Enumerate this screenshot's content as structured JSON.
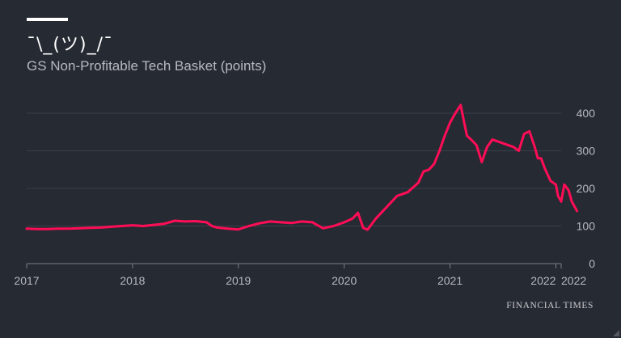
{
  "header": {
    "title": "¯\\_(ツ)_/¯",
    "subtitle": "GS Non-Profitable Tech Basket (points)"
  },
  "footer": {
    "source": "FINANCIAL TIMES"
  },
  "colors": {
    "background": "#262a33",
    "line": "#ff0d56",
    "grid": "#3b3f48",
    "axis_text": "#b7b9be"
  },
  "chart_data": {
    "type": "line",
    "title": "GS Non-Profitable Tech Basket (points)",
    "xlabel": "",
    "ylabel": "",
    "xlim": [
      2017.0,
      2022.05
    ],
    "ylim": [
      0,
      400
    ],
    "yticks": [
      0,
      100,
      200,
      300,
      400
    ],
    "xticks": [
      {
        "value": 2017.0,
        "label": "2017"
      },
      {
        "value": 2018.0,
        "label": "2018"
      },
      {
        "value": 2019.0,
        "label": "2019"
      },
      {
        "value": 2020.0,
        "label": "2020"
      },
      {
        "value": 2021.0,
        "label": "2021"
      },
      {
        "value": 2022.0,
        "label": "2022"
      },
      {
        "value": 2022.05,
        "label": "2022"
      }
    ],
    "grid": true,
    "legend": "none",
    "series": [
      {
        "name": "",
        "x": [
          2017.0,
          2017.1,
          2017.2,
          2017.3,
          2017.4,
          2017.5,
          2017.6,
          2017.7,
          2017.8,
          2017.9,
          2018.0,
          2018.1,
          2018.2,
          2018.3,
          2018.4,
          2018.5,
          2018.6,
          2018.7,
          2018.75,
          2018.8,
          2018.9,
          2019.0,
          2019.1,
          2019.2,
          2019.3,
          2019.4,
          2019.5,
          2019.6,
          2019.7,
          2019.8,
          2019.9,
          2020.0,
          2020.08,
          2020.13,
          2020.18,
          2020.22,
          2020.3,
          2020.4,
          2020.5,
          2020.6,
          2020.7,
          2020.75,
          2020.8,
          2020.85,
          2020.9,
          2020.95,
          2021.0,
          2021.05,
          2021.1,
          2021.13,
          2021.16,
          2021.2,
          2021.25,
          2021.3,
          2021.35,
          2021.4,
          2021.5,
          2021.6,
          2021.65,
          2021.7,
          2021.75,
          2021.8,
          2021.83,
          2021.86,
          2021.9,
          2021.95,
          2022.0,
          2022.02,
          2022.05,
          2022.08,
          2022.12,
          2022.15,
          2022.2
        ],
        "y": [
          93,
          92,
          92,
          93,
          93,
          94,
          95,
          96,
          98,
          100,
          102,
          100,
          103,
          106,
          114,
          112,
          113,
          110,
          100,
          96,
          93,
          91,
          100,
          107,
          112,
          110,
          108,
          112,
          110,
          94,
          100,
          110,
          120,
          135,
          95,
          90,
          120,
          150,
          180,
          190,
          215,
          245,
          250,
          265,
          300,
          340,
          375,
          400,
          422,
          380,
          340,
          330,
          315,
          270,
          310,
          330,
          320,
          310,
          300,
          345,
          352,
          310,
          280,
          280,
          250,
          220,
          210,
          180,
          165,
          210,
          195,
          165,
          140
        ]
      }
    ]
  }
}
